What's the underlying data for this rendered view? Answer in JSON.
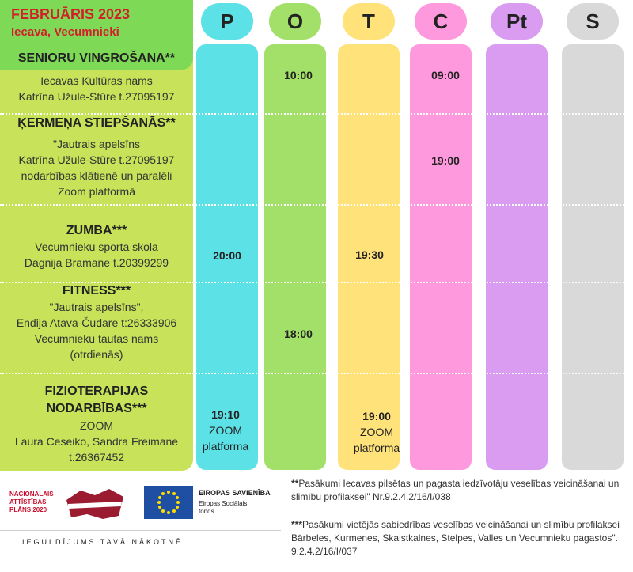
{
  "header": {
    "month": "FEBRUĀRIS 2023",
    "location": "Iecava, Vecumnieki"
  },
  "days": [
    {
      "label": "P",
      "color": "#5ce1e6"
    },
    {
      "label": "O",
      "color": "#a3e06a"
    },
    {
      "label": "T",
      "color": "#ffe27a"
    },
    {
      "label": "C",
      "color": "#ff99dd"
    },
    {
      "label": "Pt",
      "color": "#d99cf0"
    },
    {
      "label": "S",
      "color": "#d9d9d9"
    }
  ],
  "activities": [
    {
      "title": "SENIORU VINGROŠANA**",
      "lines": [
        "Iecavas Kultūras nams",
        "Katrīna Užule-Stūre  t.27095197"
      ]
    },
    {
      "title": "ĶERMEŅA STIEPŠANĀS**",
      "lines": [
        "\"Jautrais apelsīns",
        "Katrīna Užule-Stūre  t.27095197",
        "nodarbības klātienē un paralēli",
        "Zoom platformā"
      ]
    },
    {
      "title": "ZUMBA***",
      "lines": [
        "Vecumnieku sporta skola",
        "Dagnija Bramane t.20399299"
      ]
    },
    {
      "title": "FITNESS***",
      "lines": [
        "\"Jautrais apelsīns\",",
        "Endija Atava-Čudare t:26333906",
        "Vecumnieku tautas nams",
        "(otrdienās)"
      ]
    },
    {
      "title": "FIZIOTERAPIJAS NODARBĪBAS***",
      "lines": [
        "ZOOM",
        "Laura Ceseiko, Sandra Freimane",
        "t.26367452"
      ]
    }
  ],
  "times": {
    "o_senior": "10:00",
    "c_senior": "09:00",
    "c_stretch": "19:00",
    "p_zumba": "20:00",
    "t_zumba": "19:30",
    "o_fitness": "18:00",
    "p_fizio": "19:10",
    "p_fizio_sub1": "ZOOM",
    "p_fizio_sub2": "platforma",
    "t_fizio": "19:00",
    "t_fizio_sub1": "ZOOM",
    "t_fizio_sub2": "platforma"
  },
  "footer": {
    "nap_line1": "NACIONĀLAIS",
    "nap_line2": "ATTĪSTĪBAS",
    "nap_line3": "PLĀNS 2020",
    "eu_title": "EIROPAS SAVIENĪBA",
    "eu_sub1": "Eiropas Sociālais",
    "eu_sub2": "fonds",
    "slogan": "IEGULDĪJUMS TAVĀ NĀKOTNĒ",
    "note1_mark": "**",
    "note1_text": "Pasākumi Iecavas pilsētas un pagasta iedzīvotāju veselības veicināšanai un slimību profilaksei\" Nr.9.2.4.2/16/I/038",
    "note2_mark": "***",
    "note2_text": "Pasākumi vietējās sabiedrības veselības veicināšanai un slimību profilaksei Bārbeles, Kurmenes, Skaistkalnes, Stelpes, Valles un Vecumnieku pagastos\". 9.2.4.2/16/I/037"
  }
}
